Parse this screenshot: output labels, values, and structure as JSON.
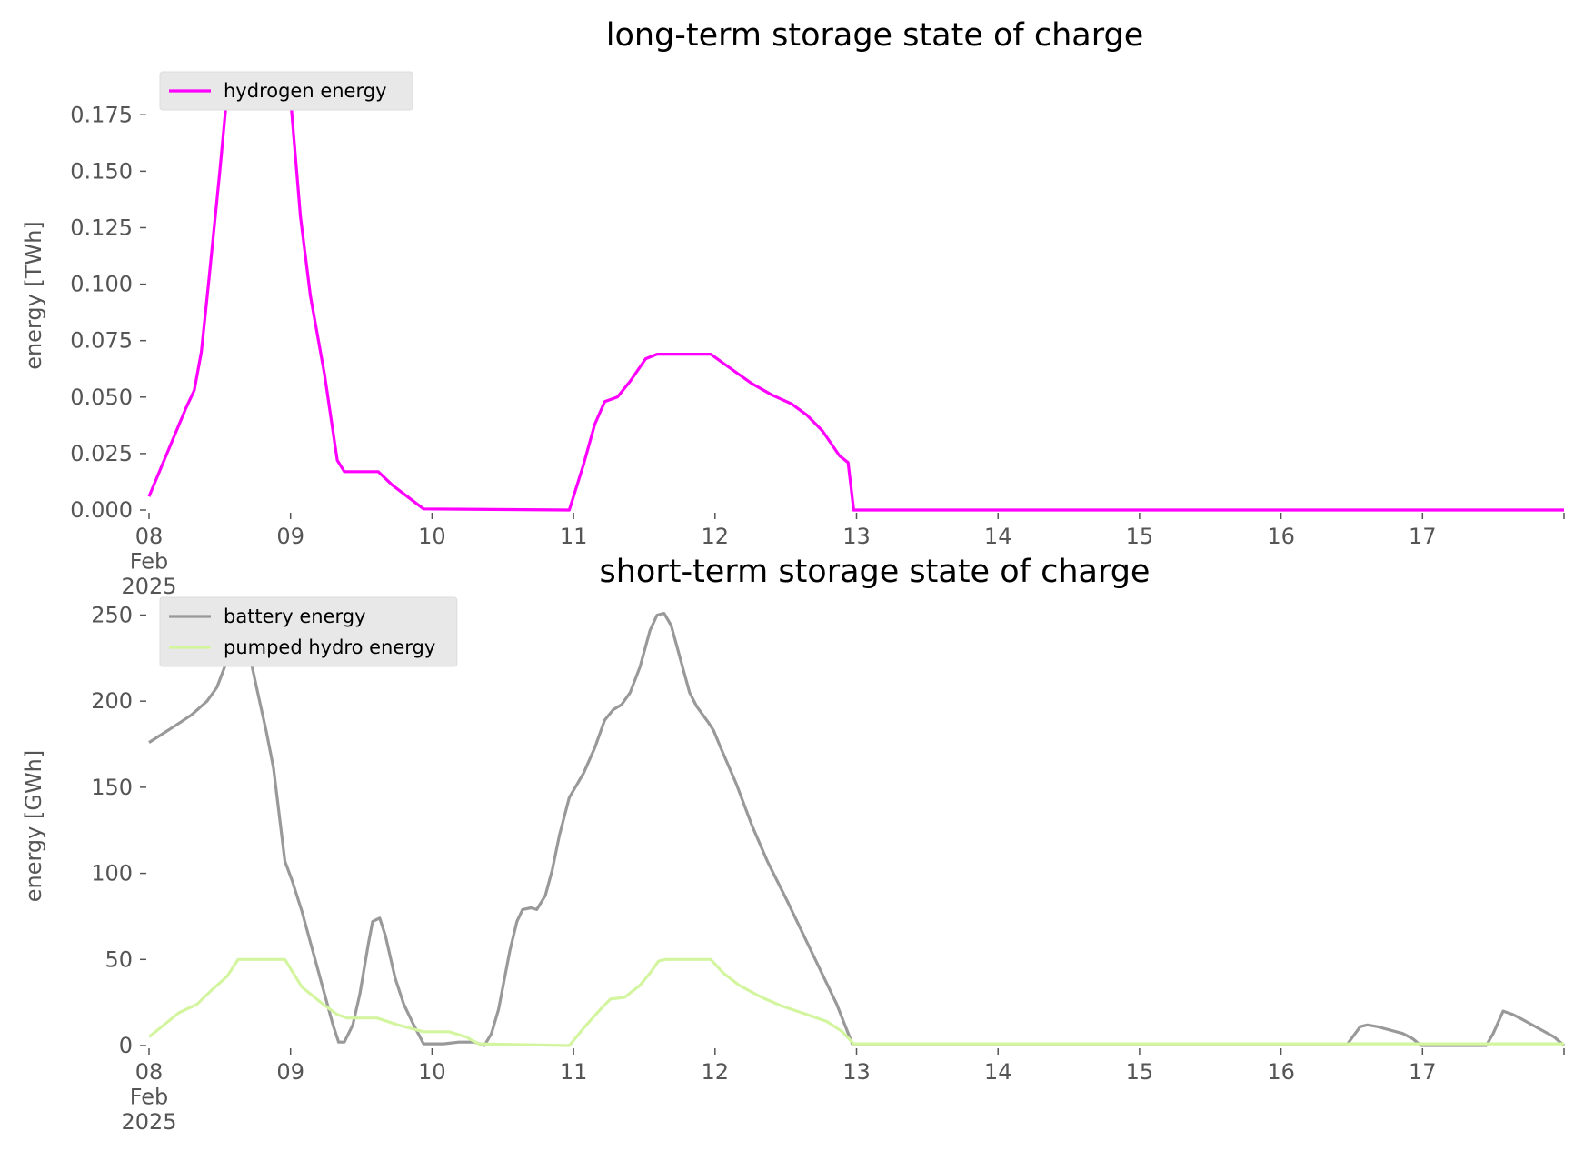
{
  "chart_data": [
    {
      "type": "line",
      "title": "long-term storage state of charge",
      "ylabel": "energy [TWh]",
      "xlim": [
        0,
        10
      ],
      "ylim": [
        0,
        0.19
      ],
      "xticks": [
        {
          "value": 0,
          "label": "08\nFeb\n2025"
        },
        {
          "value": 1,
          "label": "09"
        },
        {
          "value": 2,
          "label": "10"
        },
        {
          "value": 3,
          "label": "11"
        },
        {
          "value": 4,
          "label": "12"
        },
        {
          "value": 5,
          "label": "13"
        },
        {
          "value": 6,
          "label": "14"
        },
        {
          "value": 7,
          "label": "15"
        },
        {
          "value": 8,
          "label": "16"
        },
        {
          "value": 9,
          "label": "17"
        },
        {
          "value": 10,
          "label": null
        }
      ],
      "yticks": [
        {
          "value": 0,
          "label": "0.000"
        },
        {
          "value": 0.025,
          "label": "0.025"
        },
        {
          "value": 0.05,
          "label": "0.050"
        },
        {
          "value": 0.075,
          "label": "0.075"
        },
        {
          "value": 0.1,
          "label": "0.100"
        },
        {
          "value": 0.125,
          "label": "0.125"
        },
        {
          "value": 0.15,
          "label": "0.150"
        },
        {
          "value": 0.175,
          "label": "0.175"
        }
      ],
      "legend": "upper left",
      "grid": false,
      "series": [
        {
          "name": "hydrogen energy",
          "color": "#ff00ff",
          "x": [
            0,
            0.16,
            0.26,
            0.32,
            0.37,
            0.42,
            0.5,
            0.56,
            0.99,
            1.07,
            1.14,
            1.24,
            1.33,
            1.38,
            1.62,
            1.72,
            1.94,
            2.97,
            3.07,
            3.15,
            3.22,
            3.31,
            3.4,
            3.51,
            3.59,
            3.97,
            4.08,
            4.26,
            4.4,
            4.54,
            4.65,
            4.76,
            4.88,
            4.94,
            4.98,
            10
          ],
          "values": [
            0.006,
            0.03,
            0.045,
            0.053,
            0.07,
            0.1,
            0.15,
            0.19,
            0.19,
            0.13,
            0.095,
            0.06,
            0.022,
            0.017,
            0.017,
            0.011,
            0.0005,
            0,
            0.02,
            0.038,
            0.048,
            0.05,
            0.057,
            0.067,
            0.069,
            0.069,
            0.064,
            0.056,
            0.051,
            0.047,
            0.042,
            0.035,
            0.024,
            0.021,
            0,
            0
          ]
        }
      ]
    },
    {
      "type": "line",
      "title": "short-term storage state of charge",
      "ylabel": "energy [GWh]",
      "xlim": [
        0,
        10
      ],
      "ylim": [
        0,
        255
      ],
      "xticks": [
        {
          "value": 0,
          "label": "08\nFeb\n2025"
        },
        {
          "value": 1,
          "label": "09"
        },
        {
          "value": 2,
          "label": "10"
        },
        {
          "value": 3,
          "label": "11"
        },
        {
          "value": 4,
          "label": "12"
        },
        {
          "value": 5,
          "label": "13"
        },
        {
          "value": 6,
          "label": "14"
        },
        {
          "value": 7,
          "label": "15"
        },
        {
          "value": 8,
          "label": "16"
        },
        {
          "value": 9,
          "label": "17"
        },
        {
          "value": 10,
          "label": null
        }
      ],
      "yticks": [
        0,
        50,
        100,
        150,
        200,
        250
      ],
      "legend": "upper left",
      "grid": false,
      "series": [
        {
          "name": "battery energy",
          "color": "#999999",
          "x": [
            0,
            0.19,
            0.3,
            0.41,
            0.48,
            0.59,
            0.64,
            0.69,
            0.76,
            0.83,
            0.88,
            0.96,
            1.01,
            1.08,
            1.21,
            1.3,
            1.34,
            1.38,
            1.44,
            1.49,
            1.55,
            1.58,
            1.63,
            1.67,
            1.74,
            1.8,
            1.87,
            1.94,
            2.08,
            2.19,
            2.3,
            2.37,
            2.42,
            2.47,
            2.55,
            2.6,
            2.64,
            2.7,
            2.74,
            2.8,
            2.85,
            2.9,
            2.97,
            3.07,
            3.15,
            3.22,
            3.28,
            3.34,
            3.4,
            3.47,
            3.54,
            3.59,
            3.64,
            3.69,
            3.74,
            3.82,
            3.87,
            3.95,
            3.99,
            4.04,
            4.15,
            4.26,
            4.37,
            4.51,
            4.65,
            4.79,
            4.86,
            4.97,
            8.47,
            8.56,
            8.61,
            8.68,
            8.86,
            8.93,
            8.99,
            9.45,
            9.5,
            9.57,
            9.64,
            9.71,
            9.82,
            9.93,
            10
          ],
          "values": [
            176,
            186,
            192,
            200,
            208,
            232,
            247,
            235,
            208,
            182,
            161,
            107,
            96,
            78,
            39,
            12,
            2,
            2,
            12,
            30,
            59,
            72,
            74,
            64,
            39,
            24,
            12,
            1,
            1,
            2,
            2,
            0,
            7,
            21,
            55,
            72,
            79,
            80,
            79,
            87,
            102,
            122,
            144,
            158,
            173,
            189,
            195,
            198,
            205,
            220,
            241,
            250,
            251,
            244,
            229,
            205,
            197,
            188,
            183,
            173,
            152,
            128,
            107,
            84,
            60,
            36,
            24,
            1,
            1,
            11,
            12,
            11,
            7,
            4,
            0,
            0,
            7,
            20,
            18,
            15,
            10,
            5,
            0
          ]
        },
        {
          "name": "pumped hydro energy",
          "color": "#d4f5a0",
          "x": [
            0,
            0.09,
            0.21,
            0.34,
            0.44,
            0.55,
            0.63,
            0.96,
            1.08,
            1.23,
            1.33,
            1.4,
            1.61,
            1.76,
            1.94,
            2.12,
            2.24,
            2.33,
            2.97,
            3.08,
            3.19,
            3.26,
            3.36,
            3.47,
            3.54,
            3.6,
            3.65,
            3.97,
            4.06,
            4.17,
            4.33,
            4.47,
            4.65,
            4.79,
            4.9,
            4.98,
            10
          ],
          "values": [
            5,
            11,
            19,
            24,
            32,
            40,
            50,
            50,
            34,
            24,
            18,
            16,
            16,
            12,
            8,
            8,
            5,
            1,
            0,
            11,
            21,
            27,
            28,
            35,
            42,
            49,
            50,
            50,
            42,
            35,
            28,
            23,
            18,
            14,
            8,
            1,
            1
          ]
        }
      ]
    }
  ]
}
